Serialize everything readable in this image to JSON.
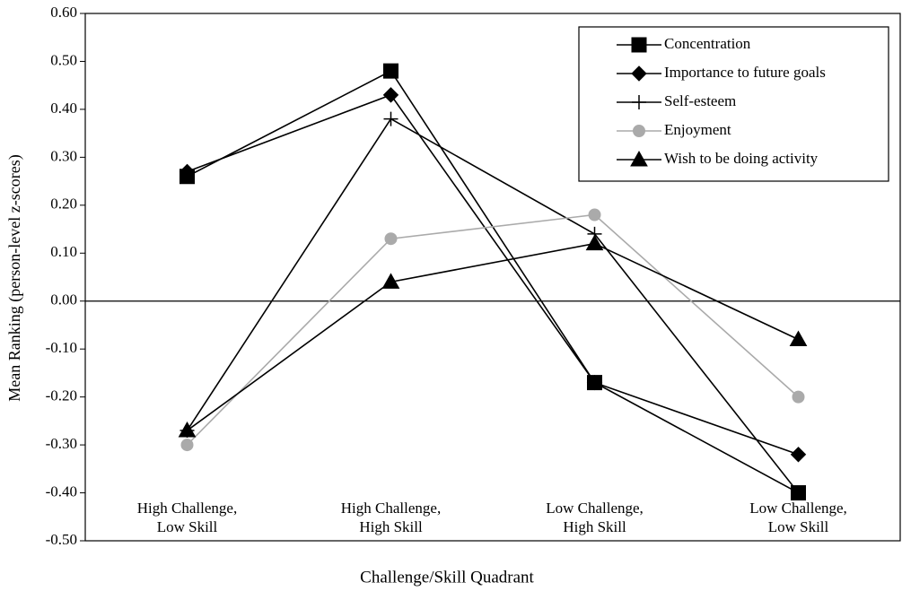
{
  "chart_data": {
    "type": "line",
    "x_label": "Challenge/Skill Quadrant",
    "y_label": "Mean Ranking (person-level z-scores)",
    "categories": [
      "High Challenge, Low Skill",
      "High Challenge, High Skill",
      "Low Challenge, High Skill",
      "Low Challenge, Low Skill"
    ],
    "series": [
      {
        "name": "Concentration",
        "color": "#000000",
        "marker": "square",
        "values": [
          0.26,
          0.48,
          -0.17,
          -0.4
        ]
      },
      {
        "name": "Importance to future goals",
        "color": "#000000",
        "marker": "diamond",
        "values": [
          0.27,
          0.43,
          -0.17,
          -0.32
        ]
      },
      {
        "name": "Self-esteem",
        "color": "#000000",
        "marker": "plus",
        "values": [
          -0.27,
          0.38,
          0.14,
          -0.4
        ]
      },
      {
        "name": "Enjoyment",
        "color": "#aaaaaa",
        "marker": "circle",
        "values": [
          -0.3,
          0.13,
          0.18,
          -0.2
        ]
      },
      {
        "name": "Wish to be doing activity",
        "color": "#000000",
        "marker": "triangle",
        "values": [
          -0.27,
          0.04,
          0.12,
          -0.08
        ]
      }
    ],
    "ylim": [
      -0.5,
      0.6
    ],
    "yticks": [
      {
        "value": 0.6,
        "label": "0.60"
      },
      {
        "value": 0.5,
        "label": "0.50"
      },
      {
        "value": 0.4,
        "label": "0.40"
      },
      {
        "value": 0.3,
        "label": "0.30"
      },
      {
        "value": 0.2,
        "label": "0.20"
      },
      {
        "value": 0.1,
        "label": "0.10"
      },
      {
        "value": 0,
        "label": "0.00"
      },
      {
        "value": -0.1,
        "label": "-0.10"
      },
      {
        "value": -0.2,
        "label": "-0.20"
      },
      {
        "value": -0.3,
        "label": "-0.30"
      },
      {
        "value": -0.4,
        "label": "-0.40"
      },
      {
        "value": -0.5,
        "label": "-0.50"
      }
    ],
    "legend": "upper right"
  }
}
